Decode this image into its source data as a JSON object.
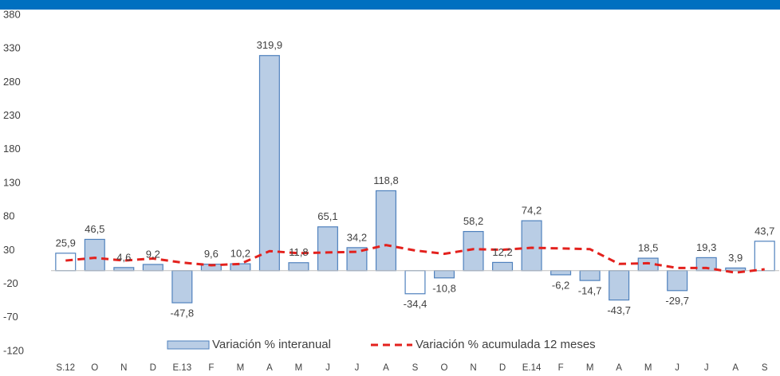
{
  "chart_data": {
    "type": "bar-line",
    "categories": [
      "S.12",
      "O",
      "N",
      "D",
      "E.13",
      "F",
      "M",
      "A",
      "M",
      "J",
      "J",
      "A",
      "S",
      "O",
      "N",
      "D",
      "E.14",
      "F",
      "M",
      "A",
      "M",
      "J",
      "J",
      "A",
      "S"
    ],
    "series": [
      {
        "name": "Variación % interanual",
        "type": "bar",
        "color": "#b9cde5",
        "edge_color": "#4f81bd",
        "fills": [
          "#ffffff",
          "#b9cde5",
          "#b9cde5",
          "#b9cde5",
          "#b9cde5",
          "#b9cde5",
          "#b9cde5",
          "#b9cde5",
          "#b9cde5",
          "#b9cde5",
          "#b9cde5",
          "#b9cde5",
          "#ffffff",
          "#b9cde5",
          "#b9cde5",
          "#b9cde5",
          "#b9cde5",
          "#b9cde5",
          "#b9cde5",
          "#b9cde5",
          "#b9cde5",
          "#b9cde5",
          "#b9cde5",
          "#b9cde5",
          "#ffffff"
        ],
        "values": [
          25.9,
          46.5,
          4.6,
          9.2,
          -47.8,
          9.6,
          10.2,
          319.9,
          11.8,
          65.1,
          34.2,
          118.8,
          -34.4,
          -10.8,
          58.2,
          12.2,
          74.2,
          -6.2,
          -14.7,
          -43.7,
          18.5,
          -29.7,
          19.3,
          3.9,
          43.7
        ],
        "value_labels": [
          "25,9",
          "46,5",
          "4,6",
          "9,2",
          "-47,8",
          "9,6",
          "10,2",
          "319,9",
          "11,8",
          "65,1",
          "34,2",
          "118,8",
          "-34,4",
          "-10,8",
          "58,2",
          "12,2",
          "74,2",
          "-6,2",
          "-14,7",
          "-43,7",
          "18,5",
          "-29,7",
          "19,3",
          "3,9",
          "43,7"
        ]
      },
      {
        "name": "Variación % acumulada 12 meses",
        "type": "line",
        "color": "#e3211d",
        "dashed": true,
        "values": [
          15,
          19,
          15,
          18,
          12,
          8,
          10,
          29,
          26,
          27,
          28,
          38,
          30,
          25,
          32,
          31,
          34,
          33,
          32,
          10,
          11,
          4,
          4,
          -3,
          2
        ]
      }
    ],
    "ylim": [
      -120,
      380
    ],
    "yticks": [
      -120,
      -70,
      -20,
      30,
      80,
      130,
      180,
      230,
      280,
      330,
      380
    ],
    "legend": "bottom"
  }
}
